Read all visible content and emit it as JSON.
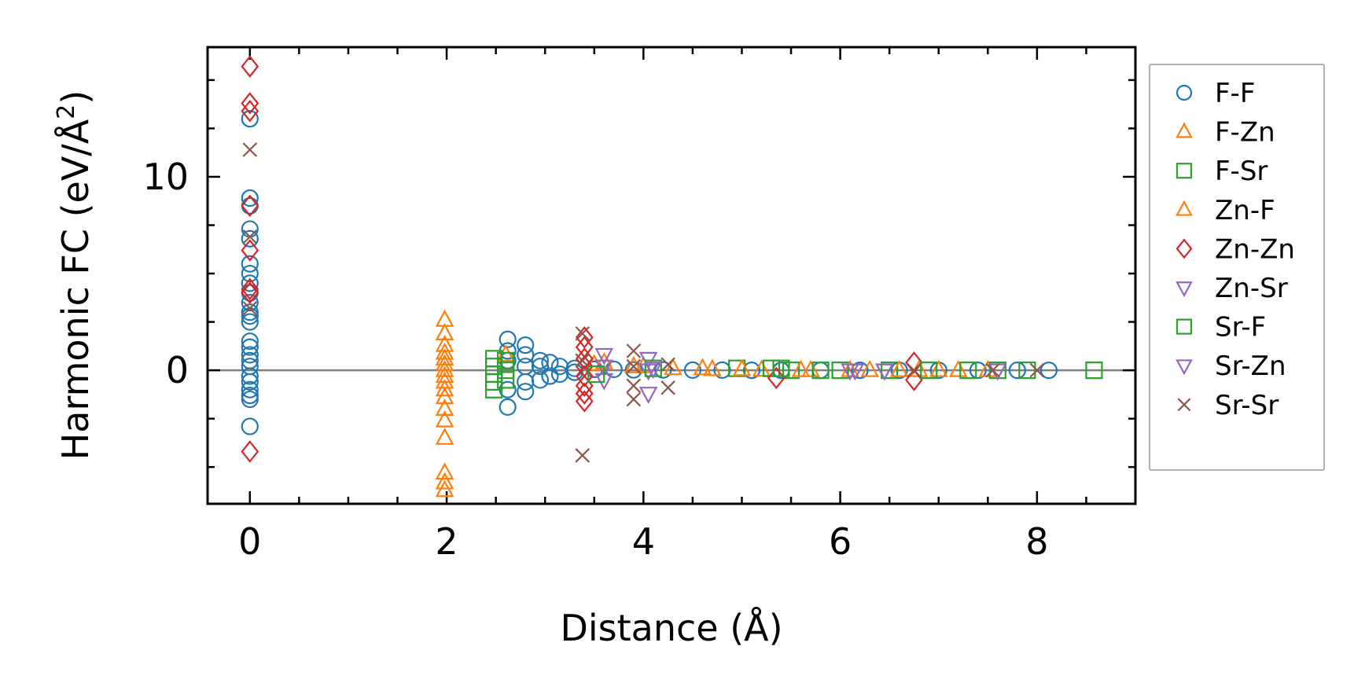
{
  "chart_data": {
    "type": "scatter",
    "xlabel": "Distance (Å)",
    "ylabel": "Harmonic FC (eV/Å²)",
    "ylabel_base": "Harmonic FC (eV/Å",
    "ylabel_sup": "2",
    "ylabel_close": ")",
    "xlim": [
      -0.43,
      9.0
    ],
    "ylim": [
      -6.9,
      16.7
    ],
    "x_ticks": [
      0,
      2,
      4,
      6,
      8
    ],
    "x_tick_labels": [
      "0",
      "2",
      "4",
      "6",
      "8"
    ],
    "y_ticks": [
      0,
      10
    ],
    "y_tick_labels": [
      "0",
      "10"
    ],
    "zero_line": true,
    "grid": false,
    "legend_position": "outside-right",
    "series": [
      {
        "name": "F-F",
        "marker": "circle",
        "color": "#1f77b4",
        "x": [
          0,
          0,
          0,
          0,
          0,
          0,
          0,
          0,
          0,
          0,
          0,
          0,
          0,
          0,
          0,
          0,
          0,
          0,
          0,
          0,
          0,
          0,
          0,
          0,
          2.62,
          2.62,
          2.62,
          2.62,
          2.62,
          2.8,
          2.8,
          2.8,
          2.8,
          2.8,
          2.95,
          2.95,
          2.95,
          3.05,
          3.05,
          3.15,
          3.15,
          3.3,
          3.3,
          3.5,
          3.7,
          3.9,
          4.2,
          4.5,
          4.8,
          5.1,
          5.4,
          5.8,
          6.2,
          6.6,
          7.0,
          7.4,
          7.8,
          8.12
        ],
        "y": [
          13.0,
          8.9,
          8.5,
          7.3,
          6.8,
          5.5,
          5.0,
          4.5,
          4.0,
          3.5,
          3.0,
          2.8,
          2.5,
          1.5,
          1.2,
          0.8,
          0.5,
          0.2,
          -0.3,
          -0.6,
          -1.0,
          -1.3,
          -1.5,
          -2.9,
          1.6,
          1.0,
          0.5,
          -1.0,
          -1.9,
          1.3,
          0.8,
          0.2,
          -0.6,
          -1.1,
          0.5,
          0.2,
          -0.5,
          0.4,
          -0.3,
          0.2,
          -0.2,
          0.1,
          -0.1,
          0.05,
          0.05,
          0.02,
          0.02,
          0.01,
          0.01,
          0.0,
          0.0,
          0.0,
          0.0,
          0.0,
          0.0,
          0.0,
          0.0,
          0.0
        ]
      },
      {
        "name": "F-Zn",
        "marker": "triangle-up",
        "color": "#ff7f0e",
        "x": [
          1.98,
          1.98,
          1.98,
          1.98,
          1.98,
          1.98,
          1.98,
          1.98,
          1.98,
          1.98,
          1.98,
          1.98,
          1.98,
          1.98,
          1.98,
          1.98,
          1.98,
          2.6,
          3.6,
          3.9,
          4.3,
          4.7,
          5.2,
          5.7,
          6.3,
          6.8,
          7.2
        ],
        "y": [
          2.6,
          1.9,
          1.3,
          0.9,
          0.6,
          0.3,
          0.0,
          -0.3,
          -0.6,
          -1.0,
          -1.4,
          -2.0,
          -2.6,
          -3.5,
          -5.3,
          -5.8,
          -6.2,
          0.8,
          0.4,
          0.2,
          0.1,
          0.05,
          0.02,
          0.0,
          0.0,
          0.0,
          0.0
        ]
      },
      {
        "name": "F-Sr",
        "marker": "square",
        "color": "#2ca02c",
        "x": [
          2.48,
          2.48,
          2.48,
          2.48,
          2.48,
          2.6,
          2.6,
          2.6,
          4.95,
          5.3,
          5.5,
          6.0,
          6.5,
          7.3,
          7.9,
          8.58
        ],
        "y": [
          0.6,
          0.2,
          -0.2,
          -0.6,
          -1.0,
          0.5,
          0.0,
          -0.5,
          0.1,
          0.1,
          0.0,
          0.0,
          0.0,
          0.0,
          0.0,
          0.0
        ]
      },
      {
        "name": "Zn-F",
        "marker": "triangle-up",
        "color": "#ff7f0e",
        "x": [
          3.5,
          4.0,
          4.6,
          5.0,
          5.6,
          6.1,
          6.6,
          7.0,
          7.5
        ],
        "y": [
          0.3,
          0.2,
          0.1,
          0.05,
          0.0,
          0.0,
          0.0,
          0.0,
          0.0
        ]
      },
      {
        "name": "Zn-Zn",
        "marker": "diamond",
        "color": "#d62728",
        "x": [
          0,
          0,
          0,
          0,
          0,
          0,
          0,
          0,
          3.4,
          3.4,
          3.4,
          3.4,
          3.4,
          3.4,
          3.4,
          3.4,
          5.35,
          6.75,
          6.75
        ],
        "y": [
          15.7,
          13.8,
          13.4,
          8.5,
          6.2,
          4.2,
          4.0,
          -4.2,
          1.7,
          1.2,
          0.6,
          0.2,
          -0.3,
          -0.8,
          -1.2,
          -1.6,
          -0.4,
          0.4,
          -0.5
        ]
      },
      {
        "name": "Zn-Sr",
        "marker": "triangle-down",
        "color": "#9467bd",
        "x": [
          3.6,
          3.6,
          3.6,
          4.05,
          4.05,
          4.05,
          6.1,
          6.45
        ],
        "y": [
          0.8,
          0.2,
          -0.5,
          0.6,
          0.0,
          -1.2,
          0.0,
          0.0
        ]
      },
      {
        "name": "Sr-F",
        "marker": "square",
        "color": "#2ca02c",
        "x": [
          3.52,
          4.1,
          5.4,
          5.8,
          6.9,
          7.6
        ],
        "y": [
          -0.2,
          0.1,
          0.1,
          0.0,
          0.0,
          0.0
        ]
      },
      {
        "name": "Sr-Zn",
        "marker": "triangle-down",
        "color": "#9467bd",
        "x": [
          4.1,
          6.15,
          6.45,
          7.6
        ],
        "y": [
          0.1,
          0.0,
          0.0,
          0.0
        ]
      },
      {
        "name": "Sr-Sr",
        "marker": "x",
        "color": "#8c564b",
        "x": [
          0,
          0,
          0,
          3.38,
          3.38,
          3.38,
          3.9,
          3.9,
          3.9,
          3.9,
          4.25,
          4.25,
          6.75,
          7.55,
          8.0
        ],
        "y": [
          11.4,
          6.9,
          3.2,
          1.9,
          0.5,
          -4.4,
          1.0,
          0.2,
          -0.8,
          -1.5,
          0.3,
          -0.9,
          0.0,
          0.0,
          0.0
        ]
      }
    ]
  }
}
